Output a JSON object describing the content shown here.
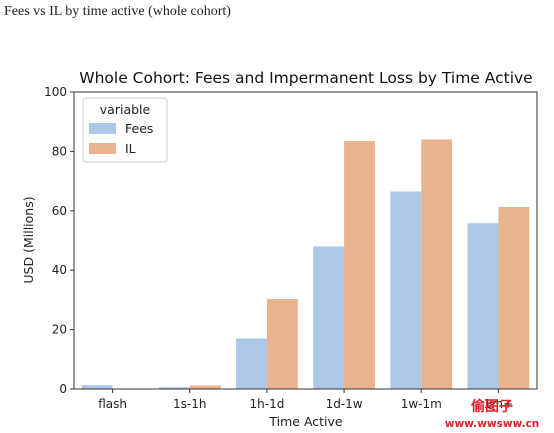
{
  "caption": "Fees vs IL by time active (whole cohort)",
  "chart_data": {
    "type": "bar",
    "title": "Whole Cohort: Fees and Impermanent Loss by Time Active",
    "xlabel": "Time Active",
    "ylabel": "USD (Millions)",
    "categories": [
      "flash",
      "1s-1h",
      "1h-1d",
      "1d-1w",
      "1w-1m",
      "1m+"
    ],
    "series": [
      {
        "name": "Fees",
        "color": "#aec7e8",
        "values": [
          1.3,
          0.6,
          17.0,
          48.0,
          66.5,
          55.8
        ]
      },
      {
        "name": "IL",
        "color": "#eab38f",
        "values": [
          0.0,
          1.2,
          30.3,
          83.5,
          84.0,
          61.3
        ]
      }
    ],
    "ylim": [
      0,
      100
    ],
    "yticks": [
      0,
      20,
      40,
      60,
      80,
      100
    ],
    "legend": {
      "title": "variable",
      "placement": "top-left"
    },
    "grid": false
  },
  "watermark": {
    "text": "偷图子",
    "url": "www.wwsww.cn",
    "color": "#e0202a"
  }
}
